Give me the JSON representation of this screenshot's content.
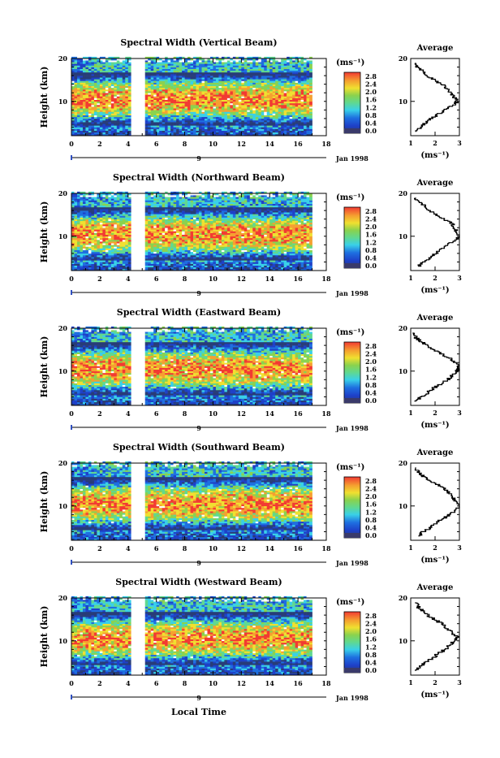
{
  "figure": {
    "x_axis_label": "Local Time",
    "day_marker_label": "9",
    "date_label": "Jan 1998",
    "y_axis_label": "Height (km)",
    "colorbar_unit": "(ms⁻¹)",
    "average_title": "Average",
    "average_x_label": "(ms⁻¹)",
    "colors": {
      "low": "#283c78",
      "mid_blue": "#1e6fe0",
      "cyan": "#39d0e8",
      "green": "#8ad24e",
      "yellow": "#f0e030",
      "orange": "#f5a030",
      "high": "#f23a32",
      "gap": "#ffffff"
    }
  },
  "chart_data": [
    {
      "type": "heatmap",
      "title": "Spectral Width (Vertical Beam)",
      "x_range": [
        0,
        18
      ],
      "x_ticks": [
        "0",
        "2",
        "4",
        "6",
        "8",
        "10",
        "12",
        "14",
        "16",
        "18"
      ],
      "y_range": [
        2,
        20
      ],
      "y_ticks": [
        "10",
        "20"
      ],
      "colorbar_ticks": [
        "2.8",
        "2.4",
        "2.0",
        "1.6",
        "1.2",
        "0.8",
        "0.4",
        "0.0"
      ],
      "data_gap_hours": [
        4.3,
        5.2
      ],
      "data_end_hour": 16.9,
      "average_profile": {
        "x_ticks": [
          "1",
          "2",
          "3"
        ],
        "x_range": [
          1,
          3
        ],
        "height_km": [
          3,
          4,
          5,
          6,
          7,
          8,
          9,
          10,
          11,
          12,
          13,
          14,
          15,
          16,
          17,
          18,
          19
        ],
        "width_ms": [
          1.2,
          1.4,
          1.6,
          1.8,
          2.1,
          2.4,
          2.7,
          2.9,
          2.8,
          2.6,
          2.5,
          2.3,
          2.0,
          1.7,
          1.5,
          1.3,
          1.2
        ]
      }
    },
    {
      "type": "heatmap",
      "title": "Spectral Width (Northward Beam)",
      "x_range": [
        0,
        18
      ],
      "x_ticks": [
        "0",
        "2",
        "4",
        "6",
        "8",
        "10",
        "12",
        "14",
        "16",
        "18"
      ],
      "y_range": [
        2,
        20
      ],
      "y_ticks": [
        "10",
        "20"
      ],
      "colorbar_ticks": [
        "2.8",
        "2.4",
        "2.0",
        "1.6",
        "1.2",
        "0.8",
        "0.4",
        "0.0"
      ],
      "data_gap_hours": [
        4.3,
        5.2
      ],
      "data_end_hour": 16.9,
      "average_profile": {
        "x_ticks": [
          "1",
          "2",
          "3"
        ],
        "x_range": [
          1,
          3
        ],
        "height_km": [
          3,
          4,
          5,
          6,
          7,
          8,
          9,
          10,
          11,
          12,
          13,
          14,
          15,
          16,
          17,
          18,
          19
        ],
        "width_ms": [
          1.3,
          1.5,
          1.8,
          2.0,
          2.2,
          2.5,
          2.8,
          3.0,
          2.9,
          2.8,
          2.7,
          2.4,
          2.1,
          1.8,
          1.6,
          1.4,
          1.2
        ]
      }
    },
    {
      "type": "heatmap",
      "title": "Spectral Width (Eastward Beam)",
      "x_range": [
        0,
        18
      ],
      "x_ticks": [
        "0",
        "2",
        "4",
        "6",
        "8",
        "10",
        "12",
        "14",
        "16",
        "18"
      ],
      "y_range": [
        2,
        20
      ],
      "y_ticks": [
        "10",
        "20"
      ],
      "colorbar_ticks": [
        "2.8",
        "2.4",
        "2.0",
        "1.6",
        "1.2",
        "0.8",
        "0.4",
        "0.0"
      ],
      "data_gap_hours": [
        4.3,
        5.2
      ],
      "data_end_hour": 16.9,
      "average_profile": {
        "x_ticks": [
          "1",
          "2",
          "3"
        ],
        "x_range": [
          1,
          3
        ],
        "height_km": [
          3,
          4,
          5,
          6,
          7,
          8,
          9,
          10,
          11,
          12,
          13,
          14,
          15,
          16,
          17,
          18,
          19
        ],
        "width_ms": [
          1.2,
          1.4,
          1.7,
          1.9,
          2.2,
          2.5,
          2.7,
          2.9,
          3.0,
          2.8,
          2.6,
          2.3,
          2.0,
          1.7,
          1.4,
          1.2,
          1.1
        ]
      }
    },
    {
      "type": "heatmap",
      "title": "Spectral Width (Southward Beam)",
      "x_range": [
        0,
        18
      ],
      "x_ticks": [
        "0",
        "2",
        "4",
        "6",
        "8",
        "10",
        "12",
        "14",
        "16",
        "18"
      ],
      "y_range": [
        2,
        20
      ],
      "y_ticks": [
        "10",
        "20"
      ],
      "colorbar_ticks": [
        "2.8",
        "2.4",
        "2.0",
        "1.6",
        "1.2",
        "0.8",
        "0.4",
        "0.0"
      ],
      "data_gap_hours": [
        4.3,
        5.2
      ],
      "data_end_hour": 16.9,
      "average_profile": {
        "x_ticks": [
          "1",
          "2",
          "3"
        ],
        "x_range": [
          1,
          3
        ],
        "height_km": [
          3,
          4,
          5,
          6,
          7,
          8,
          9,
          10,
          11,
          12,
          13,
          14,
          15,
          16,
          17,
          18,
          19
        ],
        "width_ms": [
          1.3,
          1.5,
          1.8,
          2.0,
          2.3,
          2.6,
          2.8,
          3.0,
          2.9,
          2.7,
          2.6,
          2.4,
          2.1,
          1.8,
          1.5,
          1.3,
          1.2
        ]
      }
    },
    {
      "type": "heatmap",
      "title": "Spectral Width (Westward Beam)",
      "x_range": [
        0,
        18
      ],
      "x_ticks": [
        "0",
        "2",
        "4",
        "6",
        "8",
        "10",
        "12",
        "14",
        "16",
        "18"
      ],
      "y_range": [
        2,
        20
      ],
      "y_ticks": [
        "10",
        "20"
      ],
      "colorbar_ticks": [
        "2.8",
        "2.4",
        "2.0",
        "1.6",
        "1.2",
        "0.8",
        "0.4",
        "0.0"
      ],
      "data_gap_hours": [
        4.3,
        5.2
      ],
      "data_end_hour": 16.9,
      "average_profile": {
        "x_ticks": [
          "1",
          "2",
          "3"
        ],
        "x_range": [
          1,
          3
        ],
        "height_km": [
          3,
          4,
          5,
          6,
          7,
          8,
          9,
          10,
          11,
          12,
          13,
          14,
          15,
          16,
          17,
          18,
          19
        ],
        "width_ms": [
          1.2,
          1.4,
          1.6,
          1.9,
          2.1,
          2.4,
          2.6,
          2.8,
          2.9,
          2.7,
          2.5,
          2.3,
          2.0,
          1.7,
          1.5,
          1.3,
          1.2
        ]
      }
    }
  ]
}
